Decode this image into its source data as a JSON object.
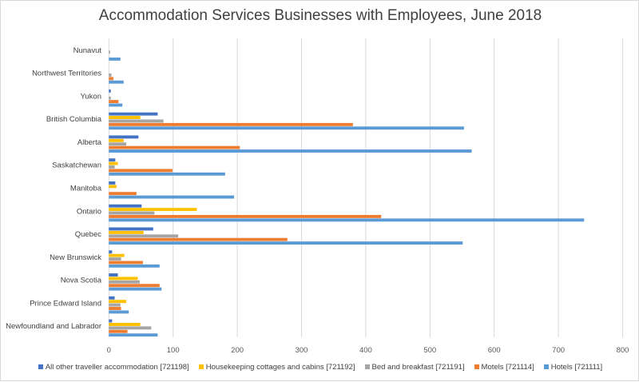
{
  "chart_data": {
    "type": "bar",
    "orientation": "horizontal",
    "title": "Accommodation Services Businesses with Employees, June 2018",
    "categories": [
      "Nunavut",
      "Northwest Territories",
      "Yukon",
      "British Columbia",
      "Alberta",
      "Saskatchewan",
      "Manitoba",
      "Ontario",
      "Quebec",
      "New Brunswick",
      "Nova Scotia",
      "Prince Edward Island",
      "Newfoundland and Labrador"
    ],
    "xlim": [
      0,
      800
    ],
    "xticks": [
      "0",
      "100",
      "200",
      "300",
      "400",
      "500",
      "600",
      "700",
      "800"
    ],
    "grid": true,
    "legend": "bottom",
    "series": [
      {
        "name": "All other traveller accommodation [721198]",
        "color": "#4472C4",
        "values": [
          0,
          0,
          3,
          76,
          46,
          10,
          10,
          51,
          69,
          5,
          14,
          9,
          5
        ]
      },
      {
        "name": "Housekeeping cottages and cabins [721192]",
        "color": "#FFC000",
        "values": [
          0,
          0,
          0,
          49,
          23,
          14,
          12,
          137,
          54,
          24,
          45,
          27,
          49
        ]
      },
      {
        "name": "Bed and breakfast [721191]",
        "color": "#A5A5A5",
        "values": [
          2,
          4,
          3,
          85,
          27,
          9,
          0,
          71,
          108,
          19,
          48,
          18,
          66
        ]
      },
      {
        "name": "Motels [721114]",
        "color": "#ED7D31",
        "values": [
          0,
          7,
          15,
          380,
          204,
          99,
          43,
          424,
          278,
          53,
          79,
          19,
          29
        ]
      },
      {
        "name": "Hotels [721111]",
        "color": "#5B9BD5",
        "values": [
          18,
          23,
          21,
          553,
          565,
          181,
          195,
          740,
          551,
          79,
          82,
          31,
          76
        ]
      }
    ]
  }
}
